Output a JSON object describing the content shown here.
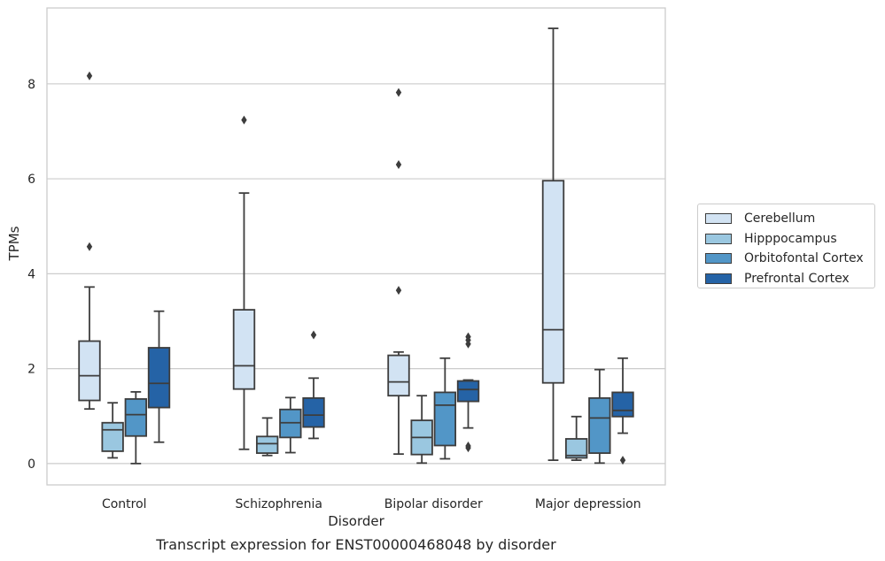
{
  "caption": "Transcript expression for ENST00000468048 by disorder",
  "chart_data": {
    "type": "box",
    "title": "",
    "xlabel": "Disorder",
    "ylabel": "TPMs",
    "ylim": [
      -0.45,
      9.6
    ],
    "yticks": [
      0,
      2,
      4,
      6,
      8
    ],
    "grid": "horizontal",
    "legend_position": "right",
    "categories": [
      "Control",
      "Schizophrenia",
      "Bipolar disorder",
      "Major depression"
    ],
    "series": [
      {
        "name": "Cerebellum",
        "color": "#d2e3f3",
        "boxes": [
          {
            "whislo": 1.15,
            "q1": 1.33,
            "med": 1.85,
            "q3": 2.58,
            "whishi": 3.72,
            "fliers": [
              4.57,
              8.17
            ]
          },
          {
            "whislo": 0.3,
            "q1": 1.57,
            "med": 2.06,
            "q3": 3.24,
            "whishi": 5.7,
            "fliers": [
              7.24
            ]
          },
          {
            "whislo": 0.2,
            "q1": 1.43,
            "med": 1.72,
            "q3": 2.28,
            "whishi": 2.35,
            "fliers": [
              3.65,
              6.3,
              7.82
            ]
          },
          {
            "whislo": 0.07,
            "q1": 1.7,
            "med": 2.82,
            "q3": 5.96,
            "whishi": 9.17,
            "fliers": []
          }
        ]
      },
      {
        "name": "Hipppocampus",
        "color": "#9ac7e0",
        "boxes": [
          {
            "whislo": 0.12,
            "q1": 0.26,
            "med": 0.71,
            "q3": 0.86,
            "whishi": 1.28,
            "fliers": []
          },
          {
            "whislo": 0.17,
            "q1": 0.22,
            "med": 0.42,
            "q3": 0.57,
            "whishi": 0.96,
            "fliers": []
          },
          {
            "whislo": 0.01,
            "q1": 0.19,
            "med": 0.55,
            "q3": 0.91,
            "whishi": 1.43,
            "fliers": []
          },
          {
            "whislo": 0.07,
            "q1": 0.12,
            "med": 0.17,
            "q3": 0.52,
            "whishi": 0.99,
            "fliers": []
          }
        ]
      },
      {
        "name": "Orbitofontal Cortex",
        "color": "#5296c7",
        "boxes": [
          {
            "whislo": 0.0,
            "q1": 0.58,
            "med": 1.03,
            "q3": 1.36,
            "whishi": 1.51,
            "fliers": []
          },
          {
            "whislo": 0.23,
            "q1": 0.55,
            "med": 0.86,
            "q3": 1.14,
            "whishi": 1.39,
            "fliers": []
          },
          {
            "whislo": 0.1,
            "q1": 0.38,
            "med": 1.23,
            "q3": 1.5,
            "whishi": 2.22,
            "fliers": []
          },
          {
            "whislo": 0.01,
            "q1": 0.22,
            "med": 0.96,
            "q3": 1.38,
            "whishi": 1.98,
            "fliers": []
          }
        ]
      },
      {
        "name": "Prefrontal Cortex",
        "color": "#2563a6",
        "boxes": [
          {
            "whislo": 0.45,
            "q1": 1.18,
            "med": 1.69,
            "q3": 2.44,
            "whishi": 3.21,
            "fliers": []
          },
          {
            "whislo": 0.53,
            "q1": 0.77,
            "med": 1.02,
            "q3": 1.38,
            "whishi": 1.8,
            "fliers": [
              2.71
            ]
          },
          {
            "whislo": 0.75,
            "q1": 1.31,
            "med": 1.56,
            "q3": 1.74,
            "whishi": 1.76,
            "fliers": [
              0.33,
              0.37,
              2.52,
              2.6,
              2.67
            ]
          },
          {
            "whislo": 0.64,
            "q1": 0.99,
            "med": 1.12,
            "q3": 1.5,
            "whishi": 2.22,
            "fliers": [
              0.07
            ]
          }
        ]
      }
    ]
  }
}
